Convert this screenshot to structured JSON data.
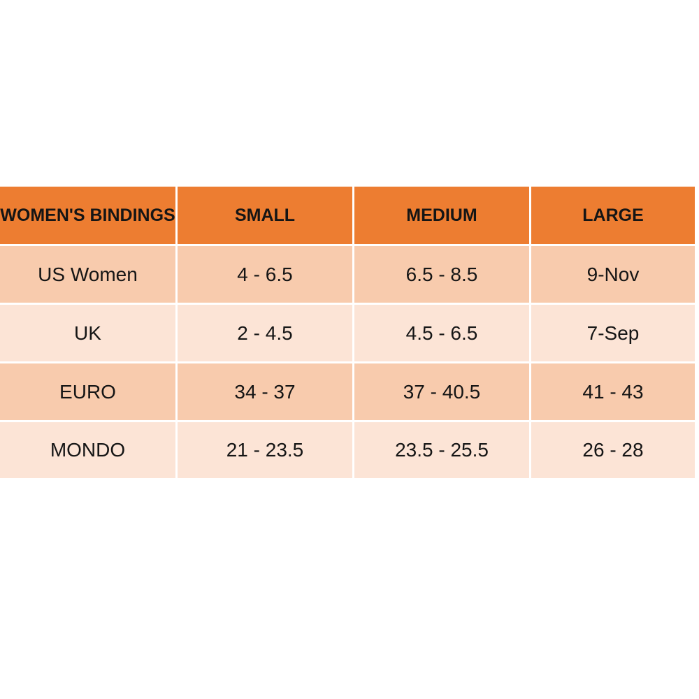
{
  "page": {
    "background": "#FFFFFF"
  },
  "colors": {
    "header_bg": "#ED7D31",
    "row_dark_bg": "#F8CBAD",
    "row_light_bg": "#FCE4D6",
    "gridline": "#FFFFFF",
    "text": "#151515"
  },
  "chart_data": {
    "type": "table",
    "title": "WOMEN'S BINDINGS",
    "columns": [
      "WOMEN'S BINDINGS",
      "SMALL",
      "MEDIUM",
      "LARGE"
    ],
    "rows": [
      [
        "US Women",
        "4 - 6.5",
        "6.5 - 8.5",
        "9-Nov"
      ],
      [
        "UK",
        "2 - 4.5",
        "4.5 - 6.5",
        "7-Sep"
      ],
      [
        "EURO",
        "34 - 37",
        "37 - 40.5",
        "41 - 43"
      ],
      [
        "MONDO",
        "21 - 23.5",
        "23.5 - 25.5",
        "26 - 28"
      ]
    ],
    "layout": {
      "header_style": "orange solid fill, bold black text",
      "row_style": "alternating peach fills starting dark",
      "grid": "thin white gridlines between cells"
    }
  }
}
